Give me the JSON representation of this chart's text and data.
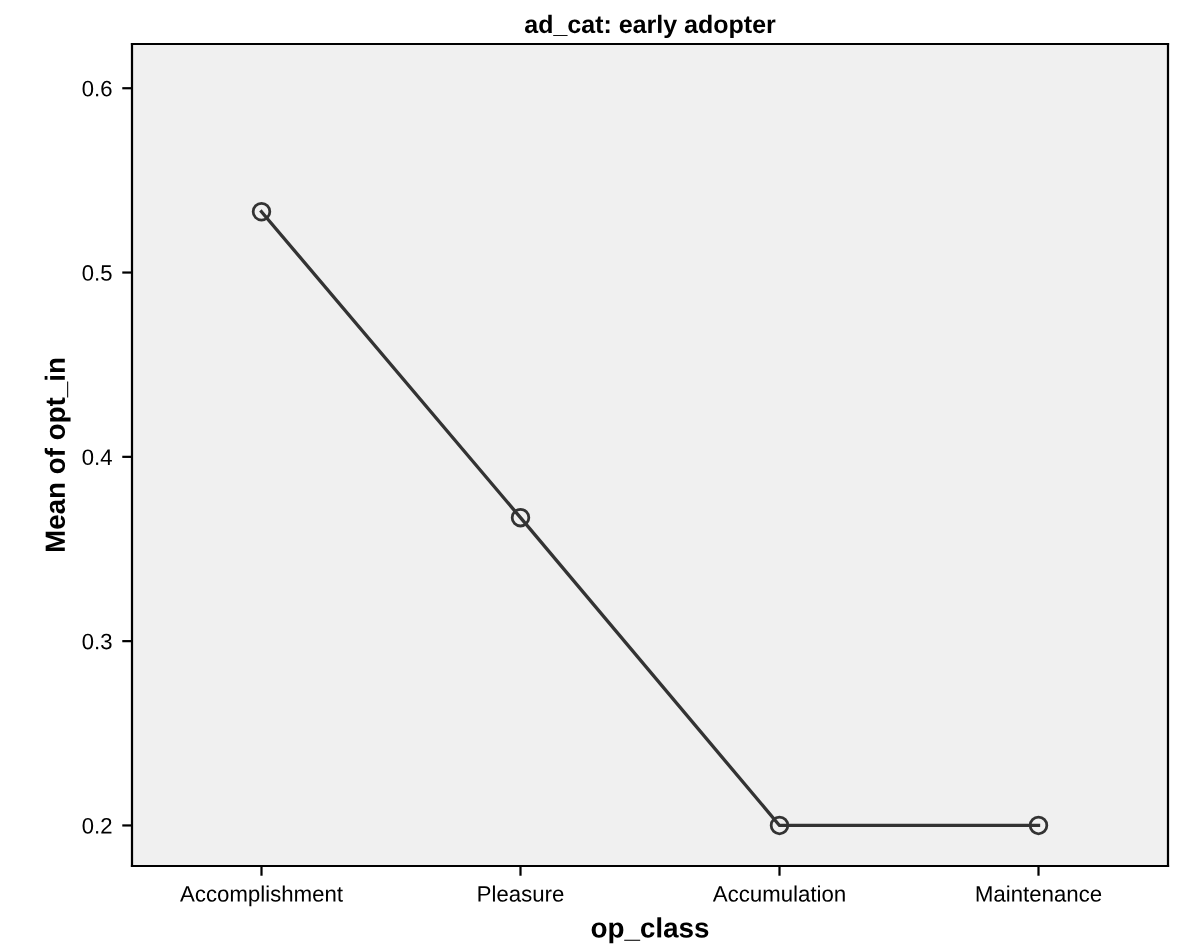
{
  "chart_data": {
    "type": "line",
    "title": "ad_cat: early adopter",
    "xlabel": "op_class",
    "ylabel": "Mean of opt_in",
    "categories": [
      "Accomplishment",
      "Pleasure",
      "Accumulation",
      "Maintenance"
    ],
    "series": [
      {
        "color": "#333333",
        "values": [
          0.533,
          0.367,
          0.2,
          0.2
        ]
      }
    ],
    "ylim": [
      0.178,
      0.624
    ],
    "yticks": [
      {
        "value": 0.2,
        "label": "0.2"
      },
      {
        "value": 0.3,
        "label": "0.3"
      },
      {
        "value": 0.4,
        "label": "0.4"
      },
      {
        "value": 0.5,
        "label": "0.5"
      },
      {
        "value": 0.6,
        "label": "0.6"
      }
    ],
    "marker": "circle",
    "line_style": "solid",
    "grid": false,
    "legend": false
  }
}
